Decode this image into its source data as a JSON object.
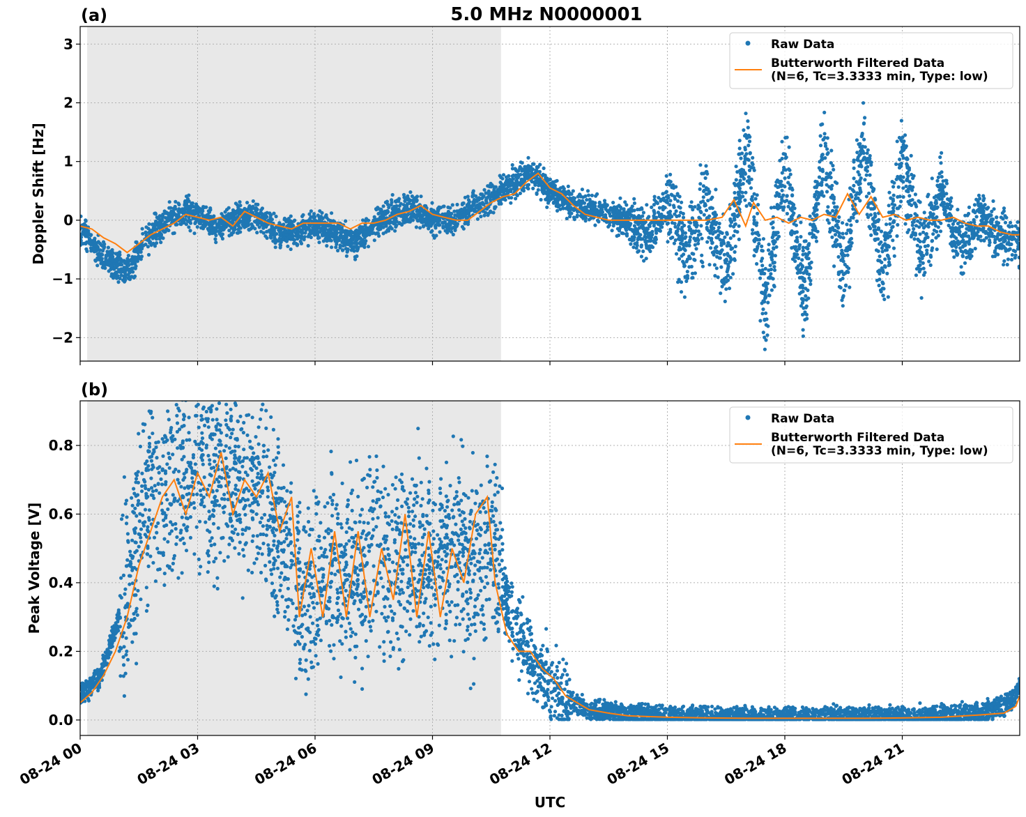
{
  "figure": {
    "title": "5.0 MHz N0000001",
    "xlabel": "UTC"
  },
  "colors": {
    "raw": "#1f77b4",
    "filtered": "#ff7f0e",
    "shade": "#e8e8e8",
    "grid": "#b0b0b0"
  },
  "chart_data": [
    {
      "type": "scatter",
      "panel_label": "(a)",
      "ylabel": "Doppler Shift [Hz]",
      "xlim": [
        0,
        24
      ],
      "ylim": [
        -2.4,
        3.3
      ],
      "yticks": [
        -2,
        -1,
        0,
        1,
        2,
        3
      ],
      "ytick_labels": [
        "−2",
        "−1",
        "0",
        "1",
        "2",
        "3"
      ],
      "shaded_interval": [
        0.18,
        10.75
      ],
      "grid": true,
      "legend_position": "top-right",
      "series": [
        {
          "name": "Raw Data",
          "kind": "scatter",
          "points": [
            [
              0.0,
              -0.1
            ],
            [
              0.4,
              -0.5
            ],
            [
              0.8,
              -0.7
            ],
            [
              1.2,
              -0.9
            ],
            [
              1.6,
              -0.4
            ],
            [
              2.0,
              -0.1
            ],
            [
              2.5,
              0.1
            ],
            [
              3.0,
              0.1
            ],
            [
              3.5,
              -0.1
            ],
            [
              4.0,
              0.0
            ],
            [
              4.5,
              0.1
            ],
            [
              5.0,
              -0.2
            ],
            [
              5.5,
              -0.2
            ],
            [
              6.0,
              -0.1
            ],
            [
              6.5,
              -0.2
            ],
            [
              7.0,
              -0.4
            ],
            [
              7.5,
              -0.1
            ],
            [
              8.0,
              0.1
            ],
            [
              8.5,
              0.2
            ],
            [
              9.0,
              0.0
            ],
            [
              9.5,
              0.0
            ],
            [
              10.0,
              0.2
            ],
            [
              10.5,
              0.4
            ],
            [
              11.0,
              0.6
            ],
            [
              11.5,
              0.8
            ],
            [
              12.0,
              0.5
            ],
            [
              12.5,
              0.3
            ],
            [
              13.0,
              0.2
            ],
            [
              13.5,
              0.1
            ],
            [
              14.0,
              0.0
            ],
            [
              14.5,
              -0.3
            ],
            [
              15.0,
              0.4
            ],
            [
              15.5,
              -0.6
            ],
            [
              16.0,
              0.3
            ],
            [
              16.5,
              -0.9
            ],
            [
              17.0,
              1.2
            ],
            [
              17.5,
              -1.4
            ],
            [
              18.0,
              0.9
            ],
            [
              18.5,
              -1.2
            ],
            [
              19.0,
              1.1
            ],
            [
              19.5,
              -1.0
            ],
            [
              20.0,
              1.3
            ],
            [
              20.5,
              -0.9
            ],
            [
              21.0,
              1.0
            ],
            [
              21.5,
              -0.6
            ],
            [
              22.0,
              0.5
            ],
            [
              22.5,
              -0.5
            ],
            [
              23.0,
              0.1
            ],
            [
              23.5,
              -0.3
            ],
            [
              24.0,
              -0.4
            ]
          ]
        },
        {
          "name": "Butterworth Filtered Data\n(N=6, Tc=3.3333 min, Type: low)",
          "kind": "line",
          "points": [
            [
              0.0,
              -0.1
            ],
            [
              0.3,
              -0.15
            ],
            [
              0.6,
              -0.3
            ],
            [
              0.9,
              -0.4
            ],
            [
              1.2,
              -0.55
            ],
            [
              1.5,
              -0.4
            ],
            [
              1.8,
              -0.25
            ],
            [
              2.1,
              -0.15
            ],
            [
              2.4,
              -0.05
            ],
            [
              2.7,
              0.1
            ],
            [
              3.0,
              0.05
            ],
            [
              3.3,
              0.0
            ],
            [
              3.6,
              0.05
            ],
            [
              3.9,
              -0.1
            ],
            [
              4.2,
              0.15
            ],
            [
              4.5,
              0.05
            ],
            [
              4.8,
              -0.05
            ],
            [
              5.1,
              -0.1
            ],
            [
              5.4,
              -0.15
            ],
            [
              5.7,
              -0.05
            ],
            [
              6.0,
              -0.05
            ],
            [
              6.3,
              -0.05
            ],
            [
              6.6,
              -0.05
            ],
            [
              6.9,
              -0.15
            ],
            [
              7.2,
              -0.05
            ],
            [
              7.5,
              -0.05
            ],
            [
              7.8,
              0.0
            ],
            [
              8.1,
              0.1
            ],
            [
              8.4,
              0.15
            ],
            [
              8.7,
              0.25
            ],
            [
              9.0,
              0.1
            ],
            [
              9.3,
              0.05
            ],
            [
              9.6,
              0.0
            ],
            [
              9.9,
              0.0
            ],
            [
              10.2,
              0.15
            ],
            [
              10.5,
              0.3
            ],
            [
              10.8,
              0.4
            ],
            [
              11.1,
              0.45
            ],
            [
              11.4,
              0.65
            ],
            [
              11.7,
              0.8
            ],
            [
              12.0,
              0.55
            ],
            [
              12.3,
              0.45
            ],
            [
              12.6,
              0.25
            ],
            [
              12.9,
              0.1
            ],
            [
              13.2,
              0.05
            ],
            [
              13.5,
              0.0
            ],
            [
              14.0,
              0.0
            ],
            [
              14.5,
              0.0
            ],
            [
              15.0,
              0.0
            ],
            [
              15.5,
              0.0
            ],
            [
              16.0,
              0.0
            ],
            [
              16.4,
              0.05
            ],
            [
              16.7,
              0.35
            ],
            [
              17.0,
              -0.1
            ],
            [
              17.2,
              0.3
            ],
            [
              17.5,
              0.0
            ],
            [
              17.8,
              0.05
            ],
            [
              18.1,
              -0.05
            ],
            [
              18.4,
              0.05
            ],
            [
              18.7,
              0.0
            ],
            [
              19.0,
              0.1
            ],
            [
              19.3,
              0.05
            ],
            [
              19.6,
              0.45
            ],
            [
              19.9,
              0.1
            ],
            [
              20.2,
              0.4
            ],
            [
              20.5,
              0.05
            ],
            [
              20.8,
              0.1
            ],
            [
              21.1,
              0.0
            ],
            [
              21.4,
              0.05
            ],
            [
              21.7,
              0.0
            ],
            [
              22.0,
              0.0
            ],
            [
              22.3,
              0.05
            ],
            [
              22.6,
              -0.05
            ],
            [
              22.9,
              -0.1
            ],
            [
              23.2,
              -0.1
            ],
            [
              23.5,
              -0.2
            ],
            [
              23.8,
              -0.25
            ],
            [
              24.0,
              -0.25
            ]
          ]
        }
      ]
    },
    {
      "type": "scatter",
      "panel_label": "(b)",
      "ylabel": "Peak Voltage [V]",
      "xlim": [
        0,
        24
      ],
      "ylim": [
        -0.045,
        0.93
      ],
      "yticks": [
        0.0,
        0.2,
        0.4,
        0.6,
        0.8
      ],
      "ytick_labels": [
        "0.0",
        "0.2",
        "0.4",
        "0.6",
        "0.8"
      ],
      "xticks": [
        0,
        3,
        6,
        9,
        12,
        15,
        18,
        21
      ],
      "xtick_labels": [
        "08-24 00",
        "08-24 03",
        "08-24 06",
        "08-24 09",
        "08-24 12",
        "08-24 15",
        "08-24 18",
        "08-24 21"
      ],
      "shaded_interval": [
        0.18,
        10.75
      ],
      "grid": true,
      "legend_position": "top-right",
      "series": [
        {
          "name": "Raw Data",
          "kind": "scatter",
          "points": [
            [
              0.0,
              0.07
            ],
            [
              0.5,
              0.12
            ],
            [
              1.0,
              0.3
            ],
            [
              1.5,
              0.6
            ],
            [
              2.0,
              0.72
            ],
            [
              2.5,
              0.7
            ],
            [
              3.0,
              0.75
            ],
            [
              3.5,
              0.7
            ],
            [
              4.0,
              0.72
            ],
            [
              4.5,
              0.68
            ],
            [
              5.0,
              0.6
            ],
            [
              5.5,
              0.4
            ],
            [
              6.0,
              0.35
            ],
            [
              6.5,
              0.45
            ],
            [
              7.0,
              0.4
            ],
            [
              7.5,
              0.5
            ],
            [
              8.0,
              0.45
            ],
            [
              8.5,
              0.5
            ],
            [
              9.0,
              0.45
            ],
            [
              9.5,
              0.5
            ],
            [
              10.0,
              0.45
            ],
            [
              10.5,
              0.5
            ],
            [
              11.0,
              0.3
            ],
            [
              11.5,
              0.18
            ],
            [
              12.0,
              0.1
            ],
            [
              12.5,
              0.05
            ],
            [
              13.0,
              0.03
            ],
            [
              14.0,
              0.015
            ],
            [
              15.0,
              0.01
            ],
            [
              16.0,
              0.008
            ],
            [
              17.0,
              0.007
            ],
            [
              18.0,
              0.007
            ],
            [
              19.0,
              0.008
            ],
            [
              20.0,
              0.008
            ],
            [
              21.0,
              0.01
            ],
            [
              22.0,
              0.012
            ],
            [
              23.0,
              0.02
            ],
            [
              23.8,
              0.05
            ],
            [
              24.0,
              0.1
            ]
          ]
        },
        {
          "name": "Butterworth Filtered Data\n(N=6, Tc=3.3333 min, Type: low)",
          "kind": "line",
          "points": [
            [
              0.0,
              0.05
            ],
            [
              0.3,
              0.08
            ],
            [
              0.6,
              0.13
            ],
            [
              0.9,
              0.2
            ],
            [
              1.2,
              0.3
            ],
            [
              1.5,
              0.45
            ],
            [
              1.8,
              0.55
            ],
            [
              2.1,
              0.65
            ],
            [
              2.4,
              0.7
            ],
            [
              2.7,
              0.6
            ],
            [
              3.0,
              0.72
            ],
            [
              3.3,
              0.65
            ],
            [
              3.6,
              0.78
            ],
            [
              3.9,
              0.6
            ],
            [
              4.2,
              0.7
            ],
            [
              4.5,
              0.65
            ],
            [
              4.8,
              0.72
            ],
            [
              5.1,
              0.55
            ],
            [
              5.4,
              0.65
            ],
            [
              5.6,
              0.3
            ],
            [
              5.9,
              0.5
            ],
            [
              6.2,
              0.3
            ],
            [
              6.5,
              0.55
            ],
            [
              6.8,
              0.3
            ],
            [
              7.1,
              0.55
            ],
            [
              7.4,
              0.3
            ],
            [
              7.7,
              0.5
            ],
            [
              8.0,
              0.35
            ],
            [
              8.3,
              0.6
            ],
            [
              8.6,
              0.3
            ],
            [
              8.9,
              0.55
            ],
            [
              9.2,
              0.3
            ],
            [
              9.5,
              0.5
            ],
            [
              9.8,
              0.4
            ],
            [
              10.1,
              0.6
            ],
            [
              10.4,
              0.65
            ],
            [
              10.6,
              0.4
            ],
            [
              10.9,
              0.25
            ],
            [
              11.2,
              0.2
            ],
            [
              11.5,
              0.2
            ],
            [
              11.8,
              0.15
            ],
            [
              12.1,
              0.12
            ],
            [
              12.4,
              0.07
            ],
            [
              12.7,
              0.05
            ],
            [
              13.0,
              0.03
            ],
            [
              13.5,
              0.02
            ],
            [
              14.0,
              0.012
            ],
            [
              15.0,
              0.008
            ],
            [
              16.0,
              0.006
            ],
            [
              17.0,
              0.005
            ],
            [
              18.0,
              0.005
            ],
            [
              19.0,
              0.005
            ],
            [
              20.0,
              0.005
            ],
            [
              21.0,
              0.006
            ],
            [
              22.0,
              0.008
            ],
            [
              23.0,
              0.015
            ],
            [
              23.6,
              0.02
            ],
            [
              23.9,
              0.04
            ],
            [
              24.0,
              0.07
            ]
          ]
        }
      ]
    }
  ]
}
